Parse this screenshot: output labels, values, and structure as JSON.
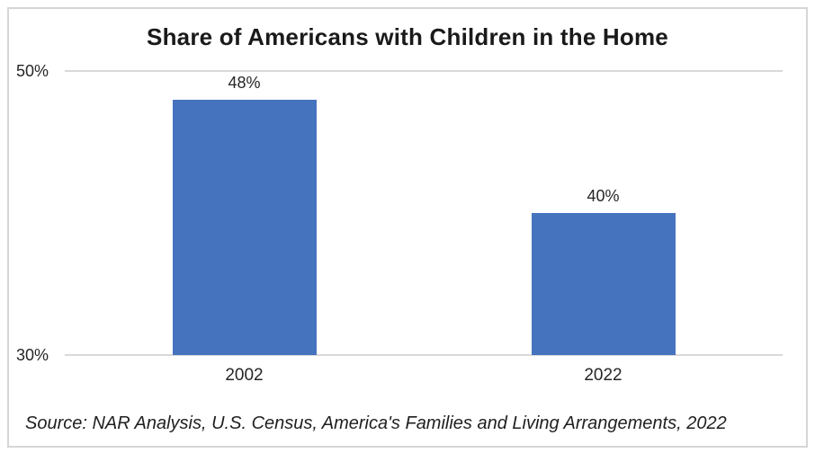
{
  "chart": {
    "source_note": "Source: NAR Analysis, U.S. Census, America's Families and Living Arrangements, 2022"
  },
  "chart_data": {
    "type": "bar",
    "title": "Share of Americans with Children in the Home",
    "categories": [
      "2002",
      "2022"
    ],
    "values": [
      48,
      40
    ],
    "data_labels": [
      "48%",
      "40%"
    ],
    "xlabel": "",
    "ylabel": "",
    "ylim": [
      30,
      50
    ],
    "yticks": [
      {
        "value": 50,
        "label": "50%"
      },
      {
        "value": 30,
        "label": "30%"
      }
    ],
    "grid": true,
    "legend": "none",
    "colors": {
      "bar": "#4673be",
      "gridline": "#d9d9d9",
      "frame_border": "#d6d6d6",
      "text": "#262626",
      "title_text": "#1a1a1a"
    }
  }
}
